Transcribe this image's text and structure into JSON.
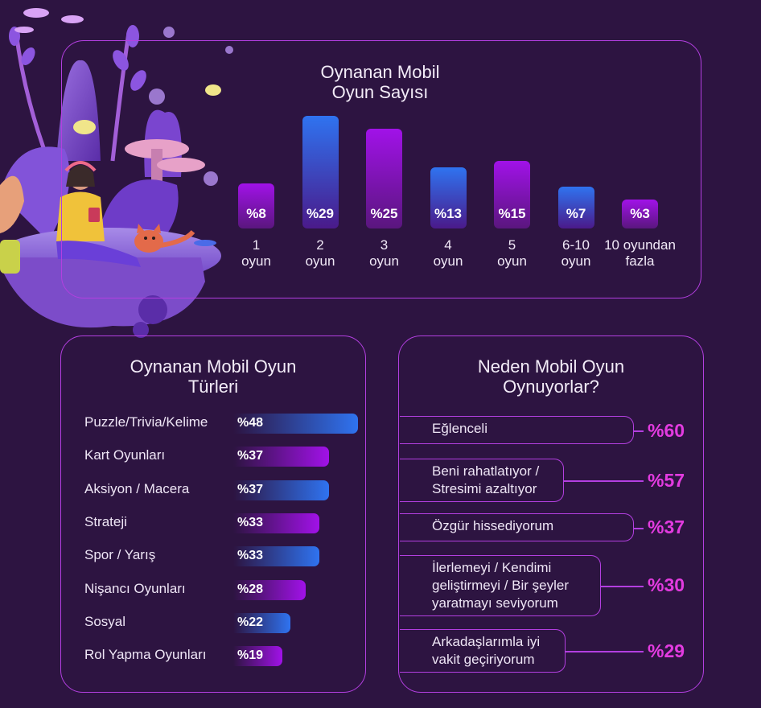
{
  "colors": {
    "background": "#2d1441",
    "panel_border": "#b33fe0",
    "bar_blue": "#2f73f0",
    "bar_purple": "#a112e8",
    "highlight": "#e33be0"
  },
  "chart_data": [
    {
      "type": "bar",
      "title": "Oynanan Mobil\nOyun Sayısı",
      "categories": [
        "1\noyun",
        "2\noyun",
        "3\noyun",
        "4\noyun",
        "5\noyun",
        "6-10\noyun",
        "10 oyundan\nfazla"
      ],
      "values": [
        8,
        29,
        25,
        13,
        15,
        7,
        3
      ],
      "labels": [
        "%8",
        "%29",
        "%25",
        "%13",
        "%15",
        "%7",
        "%3"
      ],
      "bar_colors": [
        "purple",
        "blue",
        "purple",
        "blue",
        "purple",
        "blue",
        "purple"
      ],
      "ylim": [
        0,
        29
      ]
    },
    {
      "type": "bar",
      "orientation": "horizontal",
      "title": "Oynanan Mobil Oyun\nTürleri",
      "categories": [
        "Puzzle/Trivia/Kelime",
        "Kart Oyunları",
        "Aksiyon / Macera",
        "Strateji",
        "Spor / Yarış",
        "Nişancı Oyunları",
        "Sosyal",
        "Rol Yapma Oyunları"
      ],
      "values": [
        48,
        37,
        37,
        33,
        33,
        28,
        22,
        19
      ],
      "labels": [
        "%48",
        "%37",
        "%37",
        "%33",
        "%33",
        "%28",
        "%22",
        "%19"
      ],
      "bar_colors": [
        "blue",
        "purple",
        "blue",
        "purple",
        "blue",
        "purple",
        "blue",
        "purple"
      ],
      "xlim": [
        0,
        48
      ]
    },
    {
      "type": "table",
      "title": "Neden Mobil Oyun\nOynuyorlar?",
      "categories": [
        "Eğlenceli",
        "Beni rahatlatıyor /\nStresimi azaltıyor",
        "Özgür hissediyorum",
        "İlerlemeyi / Kendimi\ngeliştirmeyi / Bir şeyler\nyaratmayı seviyorum",
        "Arkadaşlarımla iyi\nvakit geçiriyorum"
      ],
      "values": [
        60,
        57,
        37,
        30,
        29
      ],
      "labels": [
        "%60",
        "%57",
        "%37",
        "%30",
        "%29"
      ]
    }
  ]
}
